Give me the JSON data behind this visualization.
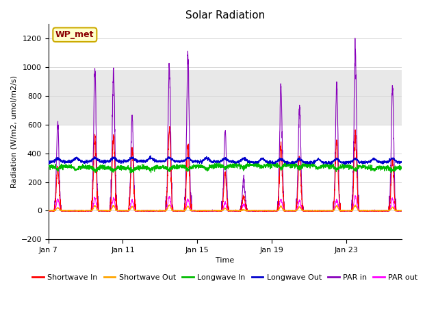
{
  "title": "Solar Radiation",
  "xlabel": "Time",
  "ylabel": "Radiation (W/m2, umol/m2/s)",
  "ylim": [
    -200,
    1300
  ],
  "yticks": [
    -200,
    0,
    200,
    400,
    600,
    800,
    1000,
    1200
  ],
  "x_tick_labels": [
    "Jan 7",
    "Jan 11",
    "Jan 15",
    "Jan 19",
    "Jan 23"
  ],
  "x_tick_positions": [
    0,
    576,
    1152,
    1728,
    2304
  ],
  "n_points": 2736,
  "pts_per_day": 144,
  "n_days": 19,
  "annotation_text": "WP_met",
  "background_color": "#ffffff",
  "grid_color": "#d8d8d8",
  "shaded_y1": 600,
  "shaded_y2": 980,
  "series": {
    "shortwave_in": {
      "color": "#ff0000",
      "label": "Shortwave In",
      "lw": 0.8
    },
    "shortwave_out": {
      "color": "#ffa500",
      "label": "Shortwave Out",
      "lw": 0.8
    },
    "longwave_in": {
      "color": "#00bb00",
      "label": "Longwave In",
      "lw": 0.8
    },
    "longwave_out": {
      "color": "#0000cc",
      "label": "Longwave Out",
      "lw": 0.8
    },
    "par_in": {
      "color": "#8800bb",
      "label": "PAR in",
      "lw": 0.8
    },
    "par_out": {
      "color": "#ff00ff",
      "label": "PAR out",
      "lw": 0.8
    }
  },
  "title_fontsize": 11,
  "label_fontsize": 8,
  "tick_fontsize": 8,
  "legend_fontsize": 8,
  "sw_in_peaks": [
    300,
    0,
    510,
    520,
    430,
    0,
    580,
    450,
    0,
    260,
    100,
    0,
    450,
    380,
    0,
    480,
    530,
    0,
    350
  ],
  "par_in_peaks": [
    610,
    0,
    970,
    990,
    660,
    0,
    1000,
    1060,
    0,
    560,
    220,
    0,
    860,
    730,
    0,
    860,
    1110,
    0,
    860
  ],
  "par_out_peaks": [
    80,
    0,
    90,
    85,
    70,
    0,
    100,
    80,
    0,
    55,
    45,
    0,
    80,
    70,
    0,
    75,
    100,
    0,
    85
  ],
  "lw_in_base": 310,
  "lw_out_base": 340
}
